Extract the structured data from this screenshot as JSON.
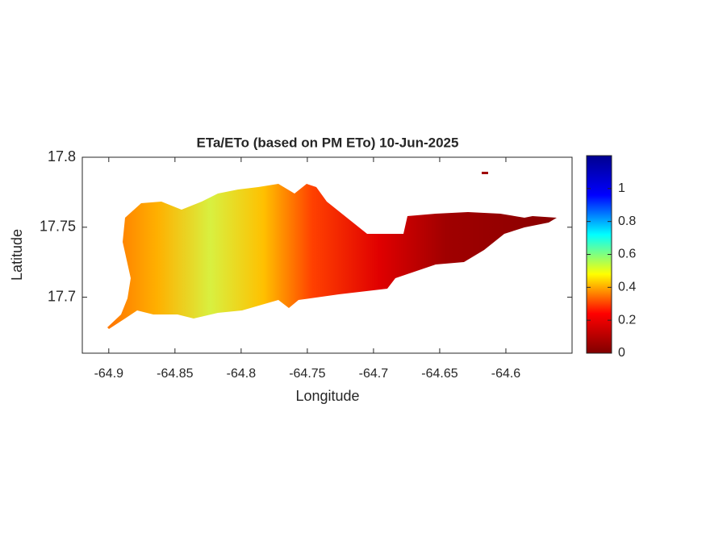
{
  "chart_data": {
    "type": "map",
    "title": "ETa/ETo (based on PM ETo) 10-Jun-2025",
    "x_label": "Longitude",
    "y_label": "Latitude",
    "xlim": [
      -64.92,
      -64.55
    ],
    "xticks": [
      -64.9,
      -64.85,
      -64.8,
      -64.75,
      -64.7,
      -64.65,
      -64.6
    ],
    "ylim": [
      17.66,
      17.8
    ],
    "yticks": [
      17.7,
      17.75,
      17.8
    ],
    "colormap": "jet",
    "clim": [
      0,
      1.2
    ],
    "cticks": [
      0,
      0.2,
      0.4,
      0.6,
      0.8,
      1
    ]
  }
}
